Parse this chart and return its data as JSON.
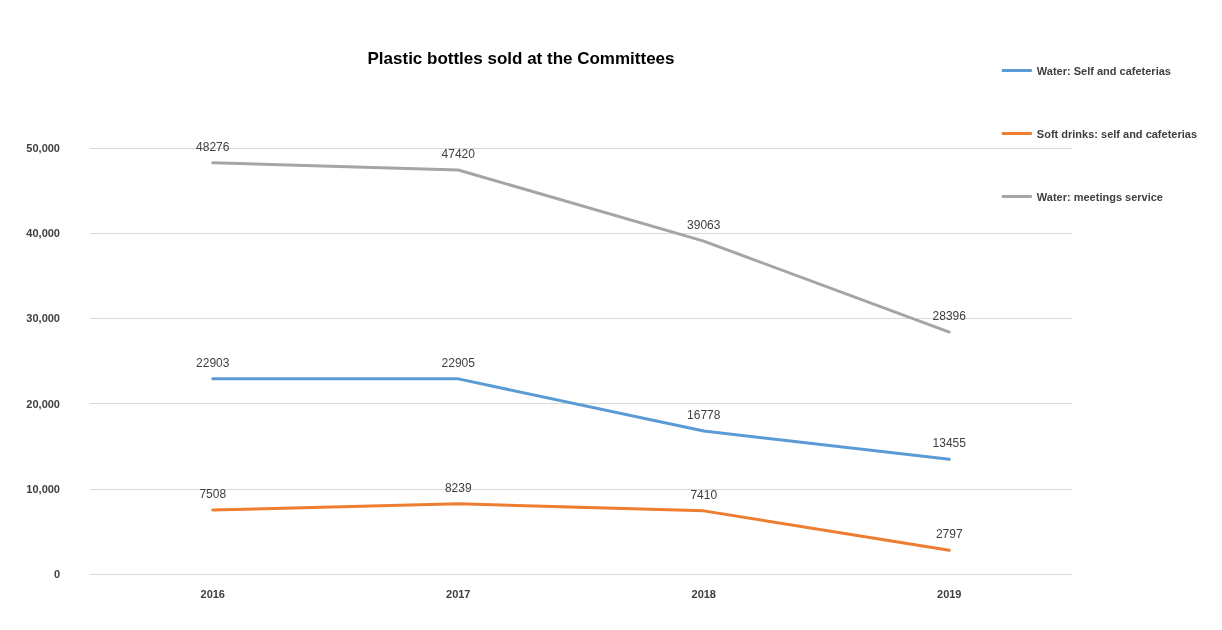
{
  "chart_data": {
    "type": "line",
    "title": "Plastic bottles sold at the Committees",
    "categories": [
      "2016",
      "2017",
      "2018",
      "2019"
    ],
    "series": [
      {
        "name": "Water: Self and cafeterias",
        "color": "#5b9bd5",
        "values": [
          22903,
          22905,
          16778,
          13455
        ]
      },
      {
        "name": "Soft drinks: self and cafeterias",
        "color": "#ed7d31",
        "values": [
          7508,
          8239,
          7410,
          2797
        ]
      },
      {
        "name": "Water: meetings service",
        "color": "#a5a5a5",
        "values": [
          48276,
          47420,
          39063,
          28396
        ]
      }
    ],
    "ylim": [
      0,
      50000
    ],
    "yticks": [
      {
        "value": 0,
        "label": "0"
      },
      {
        "value": 10000,
        "label": "10,000"
      },
      {
        "value": 20000,
        "label": "20,000"
      },
      {
        "value": 30000,
        "label": "30,000"
      },
      {
        "value": 40000,
        "label": "40,000"
      },
      {
        "value": 50000,
        "label": "50,000"
      }
    ],
    "grid": "y",
    "legend": "right",
    "marker": "none",
    "line_style": "solid",
    "data_labels": true
  }
}
